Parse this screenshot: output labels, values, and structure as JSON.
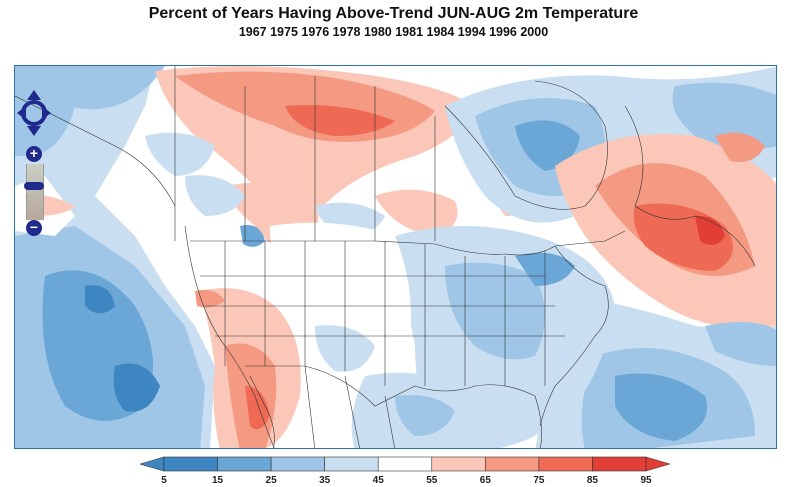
{
  "title": "Percent of Years Having Above-Trend JUN-AUG 2m Temperature",
  "subtitle": "1967 1975 1976 1978 1980 1981 1984 1994 1996 2000",
  "legend": {
    "labels": [
      "5",
      "15",
      "25",
      "35",
      "45",
      "55",
      "65",
      "75",
      "85",
      "95"
    ],
    "colors": [
      "#3e86c2",
      "#6aa6d6",
      "#9fc6e6",
      "#c9dff1",
      "#ffffff",
      "#fbc7b8",
      "#f59a82",
      "#ee6a55",
      "#e13f35"
    ]
  },
  "nav": {
    "zoom_in": "+",
    "zoom_out": "−"
  },
  "map": {
    "region": "North America",
    "colors": {
      "deep_blue": "#3e86c2",
      "mid_blue": "#6aa6d6",
      "light_blue": "#9fc6e6",
      "pale_blue": "#c9dff1",
      "neutral": "#ffffff",
      "pale_red": "#fbc7b8",
      "light_red": "#f59a82",
      "mid_red": "#ee6a55",
      "deep_red": "#e13f35",
      "border": "#2f6fa8"
    }
  }
}
